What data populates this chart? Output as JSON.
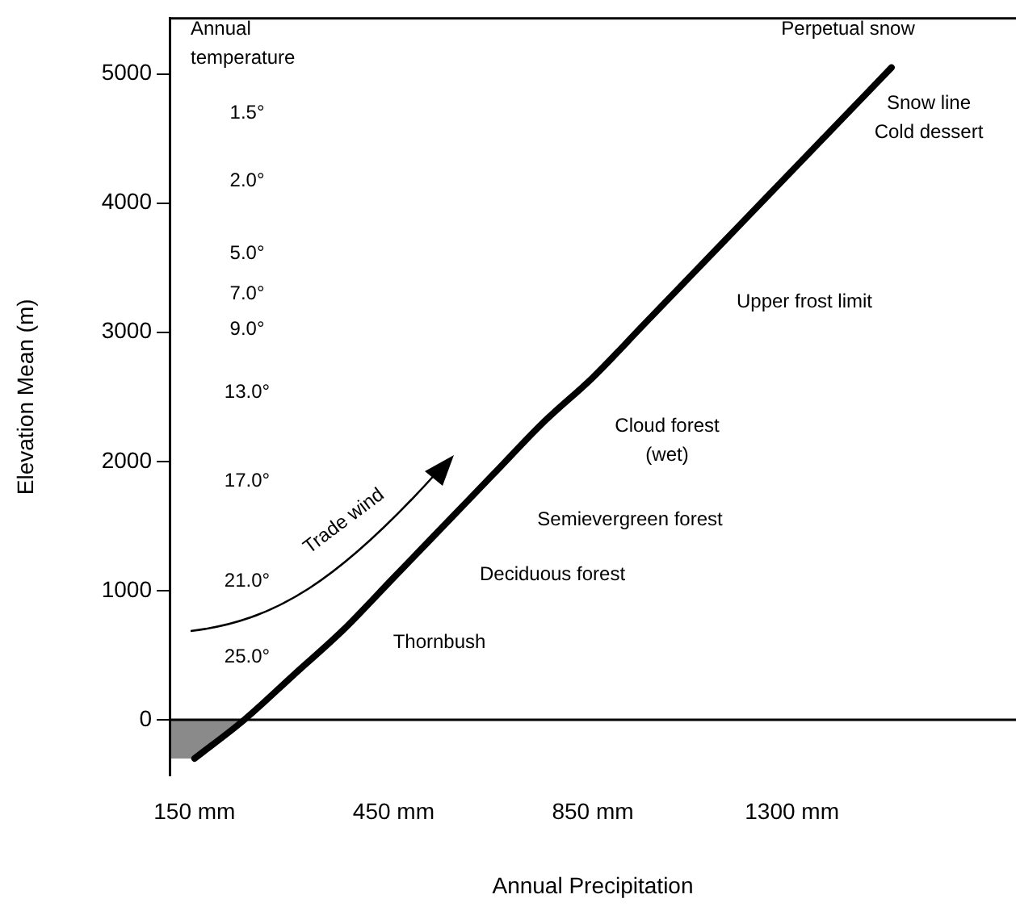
{
  "chart_data": {
    "type": "line",
    "xlabel": "Annual Precipitation",
    "ylabel": "Elevation Mean (m)",
    "categories": [
      "150 mm",
      null,
      null,
      null,
      "450 mm",
      null,
      null,
      null,
      "850 mm",
      null,
      null,
      null,
      "1300 mm",
      null,
      null,
      null,
      null
    ],
    "series": [
      {
        "color": "#000000",
        "values": [
          -300,
          0,
          350,
          700,
          1100,
          1500,
          1900,
          2300,
          2650,
          3050,
          3450,
          3850,
          4250,
          4650,
          5050,
          null,
          null
        ]
      }
    ],
    "ylim": [
      -430,
      5430
    ],
    "yticks": [
      0,
      1000,
      2000,
      3000,
      4000,
      5000
    ],
    "ref_lines": [
      {
        "axis": "y",
        "value": 0,
        "color": "#000000"
      }
    ],
    "grid": false,
    "legend": false,
    "marker": "none",
    "line_style": "solid",
    "annotations": [
      "Annual temperature",
      "1.5°",
      "2.0°",
      "5.0°",
      "7.0°",
      "9.0°",
      "13.0°",
      "17.0°",
      "21.0°",
      "25.0°",
      "Trade wind",
      "Thornbush",
      "Deciduous forest",
      "Semievergreen forest",
      "Cloud forest (wet)",
      "Upper frost limit",
      "Snow line Cold dessert",
      "Perpetual snow"
    ]
  }
}
